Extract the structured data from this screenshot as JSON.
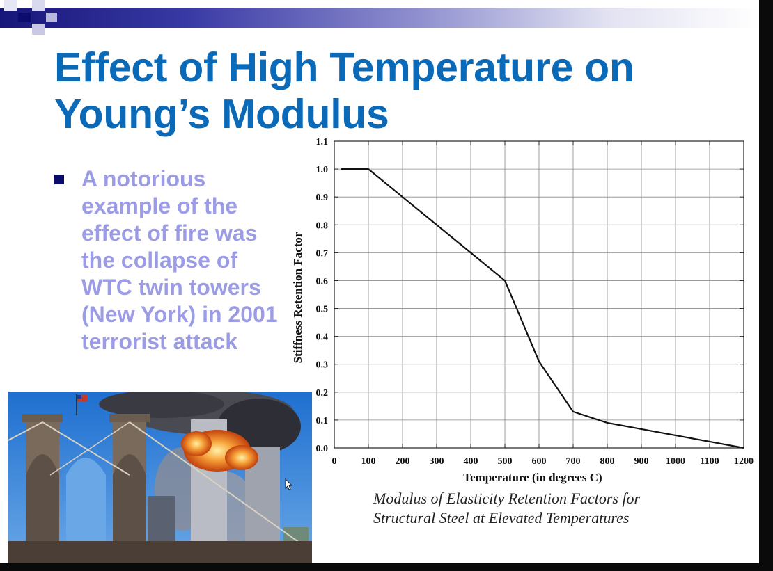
{
  "slide": {
    "title": "Effect of High Temperature on Young’s Modulus",
    "bullet": "A notorious example of the effect of fire was the collapse of WTC twin towers (New York) in 2001 terrorist attack",
    "caption_line1": "Modulus of Elasticity Retention Factors for",
    "caption_line2": "Structural Steel at Elevated Temperatures",
    "colors": {
      "title": "#0b6ab8",
      "bullet_text": "#9c9ce6",
      "bullet_marker": "#0b0b6e",
      "bar_dark": "#16167a"
    }
  },
  "photo": {
    "icons": [
      "bridge",
      "twin-towers",
      "fire-explosion",
      "smoke",
      "flag"
    ]
  },
  "chart_data": {
    "type": "line",
    "title": "",
    "xlabel": "Temperature (in degrees C)",
    "ylabel": "Stiffness Retention Factor",
    "xlim": [
      0,
      1200
    ],
    "ylim": [
      0.0,
      1.1
    ],
    "grid": true,
    "x_ticks": [
      "0",
      "100",
      "200",
      "300",
      "400",
      "500",
      "600",
      "700",
      "800",
      "900",
      "1000",
      "1100",
      "1200"
    ],
    "y_ticks": [
      "0.0",
      "0.1",
      "0.2",
      "0.3",
      "0.4",
      "0.5",
      "0.6",
      "0.7",
      "0.8",
      "0.9",
      "1.0",
      "1.1"
    ],
    "series": [
      {
        "x": [
          20,
          100,
          200,
          300,
          400,
          500,
          600,
          700,
          800,
          900,
          1000,
          1100,
          1200
        ],
        "y": [
          1.0,
          1.0,
          0.9,
          0.8,
          0.7,
          0.6,
          0.31,
          0.13,
          0.09,
          0.0675,
          0.045,
          0.0225,
          0.0
        ]
      }
    ]
  }
}
